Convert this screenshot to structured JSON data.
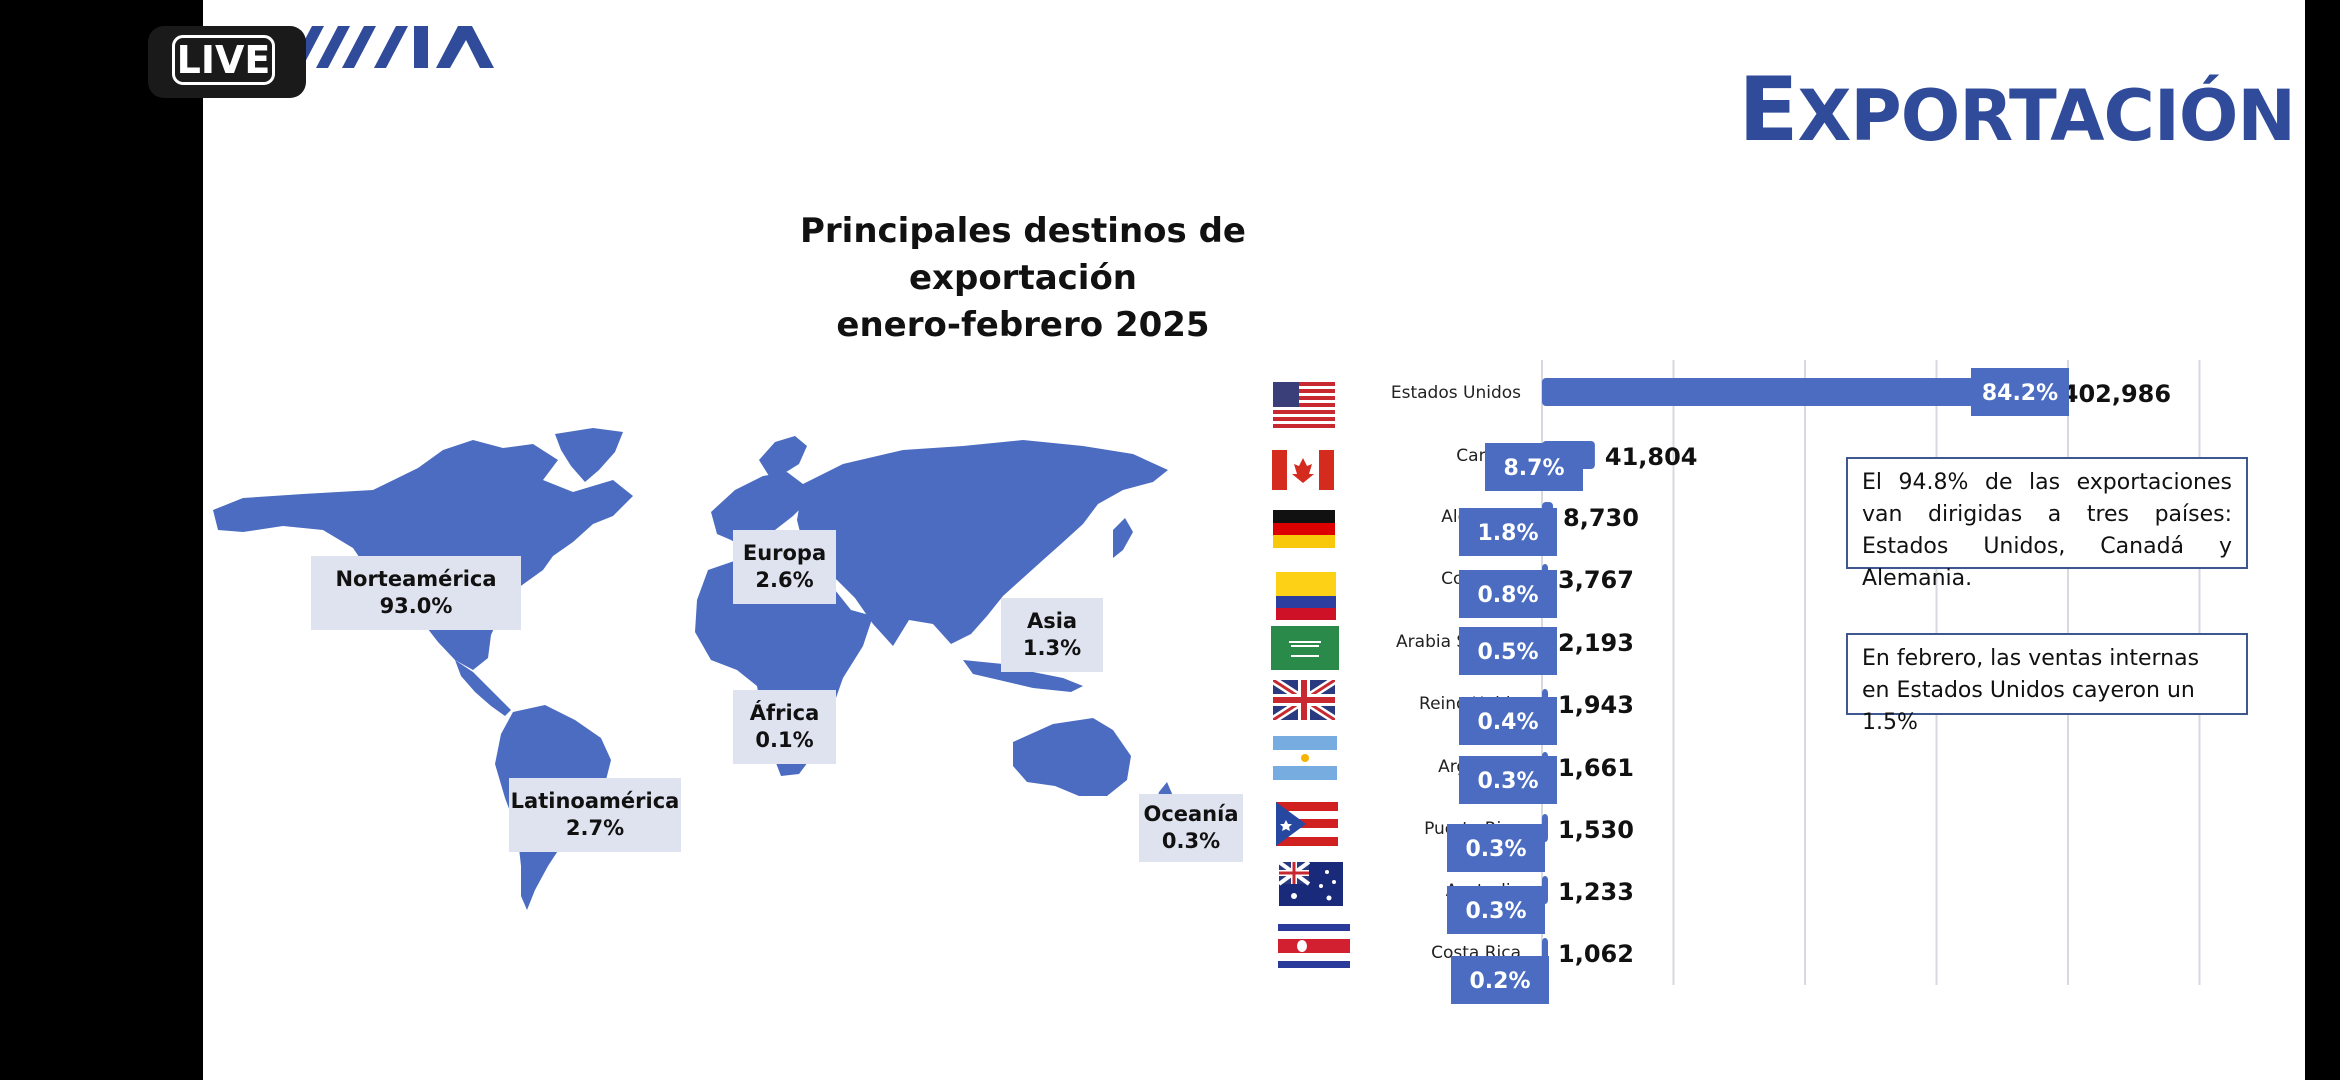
{
  "live_badge": "LIVE",
  "logo": "MAIA",
  "slide_title": {
    "first": "E",
    "rest": "XPORTACIÓN"
  },
  "colors": {
    "accent": "#4b6cc1",
    "title": "#2f4b9a",
    "label_box": "#dfe3ef"
  },
  "chart_data": [
    {
      "type": "map",
      "title_line1": "Principales destinos de exportación",
      "title_line2": "enero-febrero 2025",
      "regions": [
        {
          "name": "Norteamérica",
          "pct": "93.0%"
        },
        {
          "name": "Europa",
          "pct": "2.6%"
        },
        {
          "name": "Asia",
          "pct": "1.3%"
        },
        {
          "name": "África",
          "pct": "0.1%"
        },
        {
          "name": "Latinoamérica",
          "pct": "2.7%"
        },
        {
          "name": "Oceanía",
          "pct": "0.3%"
        }
      ]
    },
    {
      "type": "bar",
      "orientation": "horizontal",
      "categories": [
        "Estados Unidos",
        "Canadá",
        "Alemania",
        "Colombia",
        "Arabia Saudita",
        "Reino Unido",
        "Argentina",
        "Puerto Rico",
        "Australia",
        "Costa Rica"
      ],
      "values": [
        402986,
        41804,
        8730,
        3767,
        2193,
        1943,
        1661,
        1530,
        1233,
        1062
      ],
      "value_labels": [
        "402,986",
        "41,804",
        "8,730",
        "3,767",
        "2,193",
        "1,943",
        "1,661",
        "1,530",
        "1,233",
        "1,062"
      ],
      "pct_labels": [
        "84.2%",
        "8.7%",
        "1.8%",
        "0.8%",
        "0.5%",
        "0.4%",
        "0.3%",
        "0.3%",
        "0.3%",
        "0.2%"
      ],
      "flags": [
        "usa-flag",
        "canada-flag",
        "germany-flag",
        "colombia-flag",
        "saudi-arabia-flag",
        "uk-flag",
        "argentina-flag",
        "puerto-rico-flag",
        "australia-flag",
        "costa-rica-flag"
      ],
      "xlim": [
        0,
        500000
      ],
      "grid": true
    }
  ],
  "notes": [
    "El 94.8% de las exportaciones van dirigidas a tres países: Estados Unidos, Canadá y Alemania.",
    "En febrero, las ventas internas en Estados Unidos cayeron un 1.5%"
  ]
}
